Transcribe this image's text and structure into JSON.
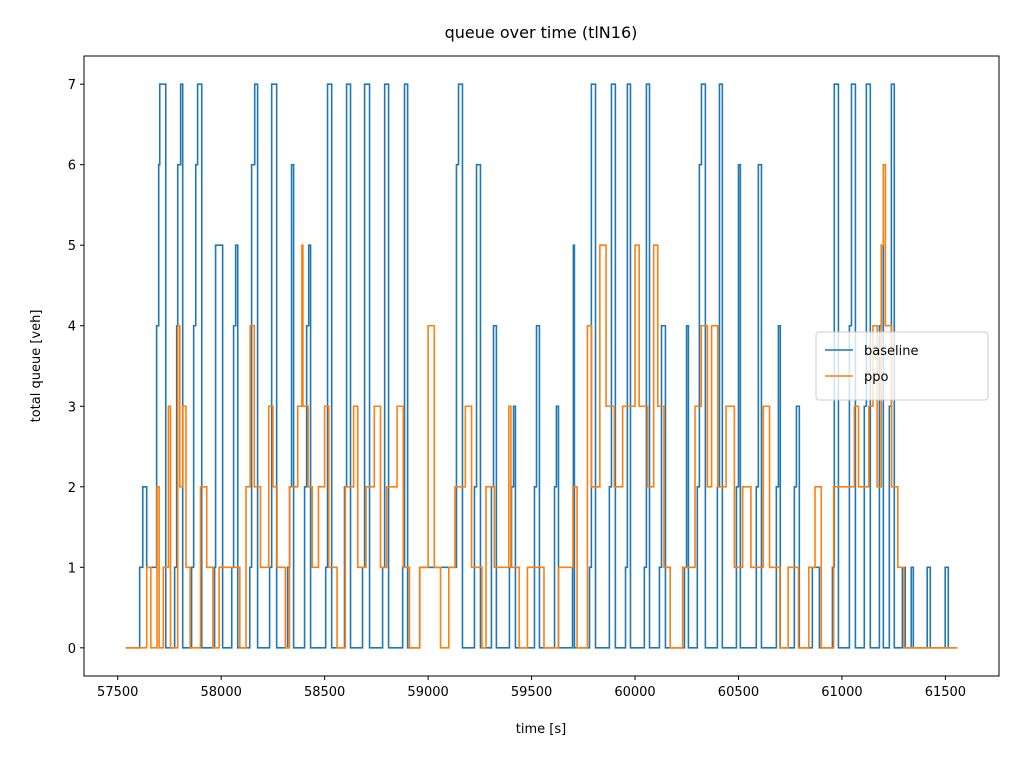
{
  "chart_data": {
    "type": "line",
    "title": "queue over time (tlN16)",
    "xlabel": "time [s]",
    "ylabel": "total queue [veh]",
    "step": true,
    "xlim": [
      57337,
      61759
    ],
    "ylim": [
      -0.35,
      7.35
    ],
    "xticks": [
      57500,
      58000,
      58500,
      59000,
      59500,
      60000,
      60500,
      61000,
      61500
    ],
    "yticks": [
      0,
      1,
      2,
      3,
      4,
      5,
      6,
      7
    ],
    "legend": "center right",
    "series": [
      {
        "name": "baseline",
        "color": "#1f77b4",
        "x": [
          57539,
          57606,
          57621,
          57640,
          57679,
          57688,
          57698,
          57703,
          57722,
          57732,
          57775,
          57785,
          57790,
          57804,
          57814,
          57857,
          57867,
          57877,
          57886,
          57906,
          57968,
          57973,
          57997,
          58007,
          58051,
          58060,
          58070,
          58080,
          58138,
          58147,
          58162,
          58176,
          58234,
          58244,
          58268,
          58321,
          58331,
          58340,
          58350,
          58403,
          58413,
          58423,
          58432,
          58505,
          58514,
          58534,
          58596,
          58606,
          58625,
          58683,
          58693,
          58717,
          58780,
          58790,
          58809,
          58877,
          58886,
          58901,
          58959,
          59128,
          59137,
          59147,
          59166,
          59224,
          59234,
          59253,
          59306,
          59316,
          59330,
          59393,
          59403,
          59413,
          59422,
          59514,
          59524,
          59538,
          59611,
          59620,
          59630,
          59698,
          59702,
          59707,
          59780,
          59789,
          59809,
          59876,
          59886,
          59905,
          59954,
          59963,
          59978,
          60045,
          60055,
          60070,
          60118,
          60128,
          60147,
          60239,
          60249,
          60258,
          60301,
          60311,
          60321,
          60340,
          60398,
          60408,
          60422,
          60490,
          60500,
          60509,
          60586,
          60596,
          60611,
          60683,
          60693,
          60702,
          60770,
          60780,
          60794,
          60857,
          60881,
          60891,
          60954,
          60963,
          60983,
          61036,
          61046,
          61065,
          61108,
          61118,
          61137,
          61181,
          61190,
          61200,
          61229,
          61239,
          61253,
          61292,
          61306,
          61335,
          61345,
          61412,
          61427,
          61499,
          61514,
          61557
        ],
        "values": [
          0,
          1,
          2,
          1,
          1,
          4,
          6,
          7,
          7,
          0,
          1,
          4,
          6,
          7,
          0,
          1,
          4,
          6,
          7,
          0,
          1,
          5,
          5,
          0,
          1,
          4,
          5,
          0,
          1,
          6,
          7,
          0,
          1,
          7,
          0,
          1,
          2,
          6,
          0,
          2,
          4,
          5,
          0,
          1,
          7,
          0,
          2,
          7,
          0,
          1,
          7,
          0,
          1,
          7,
          0,
          1,
          7,
          0,
          1,
          1,
          6,
          7,
          0,
          2,
          6,
          0,
          2,
          4,
          0,
          1,
          2,
          3,
          0,
          2,
          4,
          0,
          2,
          3,
          0,
          1,
          5,
          0,
          1,
          7,
          0,
          2,
          7,
          0,
          1,
          7,
          0,
          1,
          7,
          0,
          1,
          4,
          0,
          1,
          4,
          0,
          2,
          6,
          7,
          0,
          2,
          7,
          0,
          2,
          6,
          0,
          2,
          6,
          0,
          2,
          4,
          0,
          2,
          3,
          0,
          1,
          1,
          0,
          1,
          7,
          0,
          4,
          7,
          0,
          3,
          7,
          0,
          4,
          5,
          0,
          3,
          7,
          0,
          1,
          0,
          1,
          0,
          1,
          0,
          1,
          0,
          0
        ]
      },
      {
        "name": "ppo",
        "color": "#ff7f0e",
        "x": [
          57539,
          57640,
          57660,
          57690,
          57700,
          57720,
          57745,
          57755,
          57790,
          57800,
          57815,
          57830,
          57850,
          57900,
          57930,
          57960,
          57990,
          58040,
          58090,
          58120,
          58140,
          58160,
          58190,
          58230,
          58250,
          58270,
          58310,
          58330,
          58370,
          58390,
          58395,
          58420,
          58440,
          58470,
          58500,
          58520,
          58560,
          58600,
          58640,
          58660,
          58700,
          58740,
          58770,
          58800,
          58850,
          58880,
          58910,
          58960,
          59000,
          59030,
          59060,
          59100,
          59130,
          59180,
          59210,
          59260,
          59280,
          59320,
          59390,
          59400,
          59440,
          59480,
          59560,
          59630,
          59700,
          59720,
          59770,
          59790,
          59830,
          59860,
          59900,
          59940,
          60000,
          60020,
          60060,
          60090,
          60110,
          60140,
          60170,
          60230,
          60290,
          60320,
          60350,
          60370,
          60400,
          60440,
          60480,
          60520,
          60560,
          60620,
          60650,
          60700,
          60740,
          60790,
          60840,
          60870,
          60900,
          60960,
          61000,
          61060,
          61080,
          61130,
          61150,
          61170,
          61190,
          61200,
          61210,
          61240,
          61270,
          61300,
          61557
        ],
        "values": [
          0,
          1,
          0,
          2,
          0,
          1,
          3,
          0,
          4,
          2,
          3,
          1,
          0,
          2,
          1,
          0,
          1,
          1,
          0,
          2,
          4,
          2,
          1,
          3,
          2,
          1,
          0,
          2,
          3,
          5,
          3,
          2,
          1,
          2,
          3,
          1,
          0,
          2,
          3,
          1,
          2,
          3,
          1,
          2,
          3,
          1,
          0,
          1,
          4,
          1,
          0,
          1,
          2,
          3,
          1,
          0,
          2,
          1,
          3,
          1,
          0,
          1,
          0,
          1,
          2,
          0,
          4,
          2,
          5,
          3,
          2,
          3,
          5,
          3,
          2,
          5,
          3,
          1,
          0,
          1,
          3,
          4,
          2,
          4,
          2,
          3,
          1,
          2,
          1,
          3,
          1,
          0,
          1,
          0,
          1,
          2,
          0,
          2,
          2,
          3,
          2,
          3,
          4,
          2,
          5,
          6,
          4,
          2,
          1,
          0,
          0
        ]
      }
    ]
  }
}
